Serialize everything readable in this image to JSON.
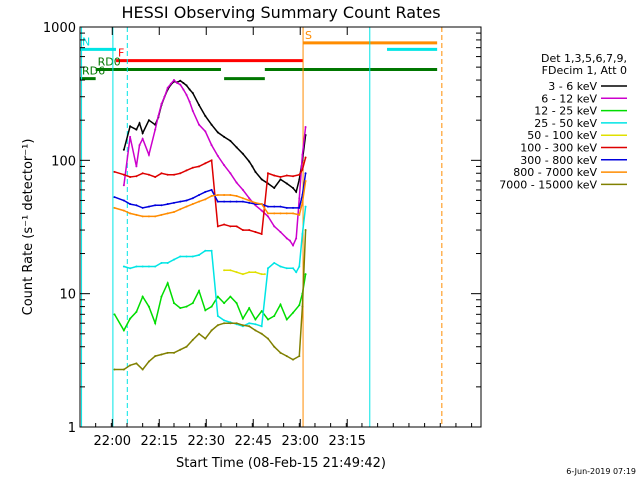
{
  "chart_data": {
    "type": "line",
    "title": "HESSI Observing Summary Count Rates",
    "xlabel": "Start Time (08-Feb-15 21:49:42)",
    "ylabel": "Count Rate (s⁻¹ detector⁻¹)",
    "y_scale": "log",
    "ylim": [
      1,
      1000
    ],
    "xlim_min": [
      0,
      128
    ],
    "x_ticks": [
      {
        "t": 10.3,
        "label": "22:00"
      },
      {
        "t": 25.3,
        "label": "22:15"
      },
      {
        "t": 40.3,
        "label": "22:30"
      },
      {
        "t": 55.3,
        "label": "22:45"
      },
      {
        "t": 70.3,
        "label": "23:00"
      },
      {
        "t": 85.3,
        "label": "23:15"
      }
    ],
    "y_ticks": [
      {
        "v": 1,
        "label": "1"
      },
      {
        "v": 10,
        "label": "10"
      },
      {
        "v": 100,
        "label": "100"
      },
      {
        "v": 1000,
        "label": "1000"
      }
    ],
    "legend_header": [
      "Det 1,3,5,6,7,9,",
      "FDecim 1, Att 0"
    ],
    "series": [
      {
        "name": "3 - 6 keV",
        "color": "#000000",
        "x": [
          14,
          16,
          18,
          19,
          20,
          22,
          24,
          25,
          26,
          27,
          28,
          29,
          30,
          31,
          32,
          33,
          34,
          35,
          36,
          38,
          40,
          42,
          44,
          46,
          48,
          50,
          52,
          54,
          55,
          56,
          58,
          60,
          62,
          64,
          66,
          68,
          69,
          70,
          71,
          72
        ],
        "y": [
          120,
          180,
          170,
          190,
          160,
          200,
          185,
          210,
          260,
          300,
          340,
          370,
          390,
          385,
          395,
          380,
          365,
          340,
          320,
          260,
          215,
          185,
          162,
          150,
          140,
          125,
          112,
          98,
          90,
          82,
          72,
          67,
          62,
          72,
          67,
          62,
          58,
          72,
          100,
          155
        ]
      },
      {
        "name": "6 - 12 keV",
        "color": "#cc00cc",
        "x": [
          14,
          16,
          18,
          19,
          20,
          22,
          24,
          25,
          26,
          27,
          28,
          29,
          30,
          31,
          32,
          33,
          34,
          35,
          36,
          38,
          40,
          42,
          44,
          46,
          48,
          50,
          52,
          54,
          56,
          58,
          60,
          62,
          64,
          66,
          67,
          68,
          69,
          70,
          71,
          72
        ],
        "y": [
          65,
          150,
          90,
          130,
          145,
          110,
          170,
          215,
          265,
          300,
          350,
          375,
          400,
          380,
          370,
          340,
          310,
          275,
          235,
          185,
          165,
          130,
          108,
          92,
          80,
          68,
          60,
          52,
          46,
          42,
          38,
          32,
          29,
          26,
          25,
          23,
          26,
          52,
          110,
          178
        ]
      },
      {
        "name": "12 - 25 keV",
        "color": "#00dd00",
        "x": [
          11,
          14,
          16,
          18,
          20,
          22,
          24,
          26,
          28,
          30,
          32,
          34,
          36,
          38,
          40,
          42,
          44,
          46,
          48,
          50,
          52,
          54,
          56,
          58,
          60,
          62,
          64,
          66,
          68,
          70,
          71,
          72
        ],
        "y": [
          7,
          5.3,
          6.5,
          7.3,
          9.5,
          8,
          6,
          9.5,
          12,
          8.5,
          7.8,
          8,
          8.5,
          10.5,
          7.5,
          8,
          9.5,
          8.5,
          9.5,
          8.5,
          6.5,
          7.8,
          6.4,
          7.4,
          6.4,
          6.8,
          8.3,
          6.4,
          7.2,
          8.2,
          10,
          14
        ]
      },
      {
        "name": "25 - 50 keV",
        "color": "#00e5e5",
        "x": [
          14,
          16,
          18,
          20,
          22,
          24,
          26,
          28,
          30,
          32,
          34,
          36,
          38,
          40,
          42,
          44,
          46,
          48,
          50,
          52,
          54,
          56,
          58,
          60,
          62,
          64,
          66,
          68,
          69,
          70,
          71,
          72
        ],
        "y": [
          16,
          15.5,
          16,
          16,
          16,
          16,
          17,
          17,
          18,
          19,
          19,
          19,
          19.5,
          21,
          21,
          6.8,
          6.3,
          6.1,
          5.9,
          5.7,
          6.0,
          5.9,
          5.7,
          15.5,
          17,
          16,
          15.5,
          15.5,
          14.5,
          16,
          28,
          45
        ]
      },
      {
        "name": "50 - 100 keV",
        "color": "#e0e000",
        "x": [
          46,
          48,
          50,
          52,
          54,
          56,
          58,
          59
        ],
        "y": [
          15,
          15,
          14.5,
          14,
          14.5,
          14.5,
          14,
          14
        ]
      },
      {
        "name": "100 - 300 keV",
        "color": "#dd0000",
        "x": [
          11,
          14,
          16,
          18,
          20,
          22,
          24,
          26,
          28,
          30,
          32,
          34,
          36,
          38,
          40,
          42,
          44,
          46,
          48,
          50,
          52,
          54,
          56,
          58,
          60,
          62,
          64,
          66,
          68,
          70,
          71,
          72
        ],
        "y": [
          82,
          78,
          75,
          76,
          80,
          78,
          75,
          80,
          78,
          78,
          80,
          84,
          88,
          90,
          95,
          100,
          32,
          33,
          32,
          32,
          30,
          30,
          29,
          28,
          80,
          77,
          75,
          77,
          76,
          78,
          85,
          105
        ]
      },
      {
        "name": "300 - 800 keV",
        "color": "#0000dd",
        "x": [
          11,
          14,
          16,
          18,
          20,
          22,
          24,
          26,
          28,
          30,
          32,
          34,
          36,
          38,
          40,
          42,
          44,
          46,
          48,
          50,
          52,
          54,
          56,
          58,
          60,
          62,
          64,
          66,
          68,
          70,
          71,
          72
        ],
        "y": [
          53,
          50,
          47,
          46,
          44,
          45,
          46,
          46,
          47,
          48,
          49,
          50,
          52,
          55,
          58,
          60,
          49,
          49,
          49,
          49,
          49,
          48,
          47,
          47,
          45,
          45,
          45,
          44,
          44,
          44,
          55,
          80
        ]
      },
      {
        "name": "800 - 7000 keV",
        "color": "#ff8c00",
        "x": [
          11,
          14,
          16,
          18,
          20,
          22,
          24,
          26,
          28,
          30,
          32,
          34,
          36,
          38,
          40,
          42,
          44,
          46,
          48,
          50,
          52,
          54,
          56,
          58,
          60,
          62,
          64,
          66,
          68,
          70,
          71,
          72
        ],
        "y": [
          44,
          42,
          40,
          39,
          38,
          38,
          38,
          39,
          40,
          41,
          43,
          45,
          47,
          49,
          51,
          54,
          55,
          55,
          55,
          54,
          52,
          50,
          48,
          47,
          40,
          40,
          40,
          40,
          40,
          39,
          48,
          70
        ]
      },
      {
        "name": "7000 - 15000 keV",
        "color": "#808000",
        "x": [
          11,
          14,
          16,
          18,
          20,
          22,
          24,
          26,
          28,
          30,
          32,
          34,
          36,
          38,
          40,
          42,
          44,
          46,
          48,
          50,
          52,
          54,
          56,
          58,
          60,
          62,
          64,
          66,
          68,
          70,
          71,
          72
        ],
        "y": [
          2.7,
          2.7,
          2.9,
          3.0,
          2.7,
          3.1,
          3.4,
          3.5,
          3.6,
          3.6,
          3.8,
          4.0,
          4.5,
          5.0,
          4.6,
          5.3,
          5.8,
          6.0,
          6.0,
          6.0,
          5.8,
          5.7,
          5.3,
          5.0,
          4.6,
          4.0,
          3.6,
          3.4,
          3.2,
          3.4,
          8,
          30
        ]
      }
    ],
    "flag_bars": [
      {
        "label": "N",
        "label_color": "#00e5e5",
        "color": "#00e5e5",
        "segments": [
          [
            0,
            11.5
          ],
          [
            98,
            114
          ]
        ],
        "level": 680
      },
      {
        "label": "F",
        "label_color": "#ff0000",
        "color": "#ff0000",
        "segments": [
          [
            11.5,
            71.2
          ]
        ],
        "level": 560
      },
      {
        "label": "S",
        "label_color": "#ff8c00",
        "color": "#ff8c00",
        "segments": [
          [
            71.2,
            114
          ]
        ],
        "level": 760
      },
      {
        "label": "RD0",
        "label_color": "#007700",
        "color": "#007700",
        "segments": [
          [
            5,
            45
          ],
          [
            59,
            114
          ]
        ],
        "level": 480
      },
      {
        "label": "RD6",
        "label_color": "#007700",
        "color": "#007700",
        "segments": [
          [
            0,
            5
          ],
          [
            46,
            59
          ]
        ],
        "level": 410
      }
    ],
    "vertical_markers": [
      {
        "t": 0.5,
        "color": "#00e5e5",
        "style": "solid"
      },
      {
        "t": 10.5,
        "color": "#00e5e5",
        "style": "solid"
      },
      {
        "t": 15.1,
        "color": "#00e5e5",
        "style": "dashed"
      },
      {
        "t": 71.2,
        "color": "#ff8c00",
        "style": "solid"
      },
      {
        "t": 92.5,
        "color": "#00e5e5",
        "style": "solid"
      },
      {
        "t": 115.5,
        "color": "#ff8c00",
        "style": "dashed"
      }
    ],
    "grid": false,
    "legend_position": "right"
  },
  "footer": {
    "date_stamp": "6-Jun-2019 07:19"
  }
}
